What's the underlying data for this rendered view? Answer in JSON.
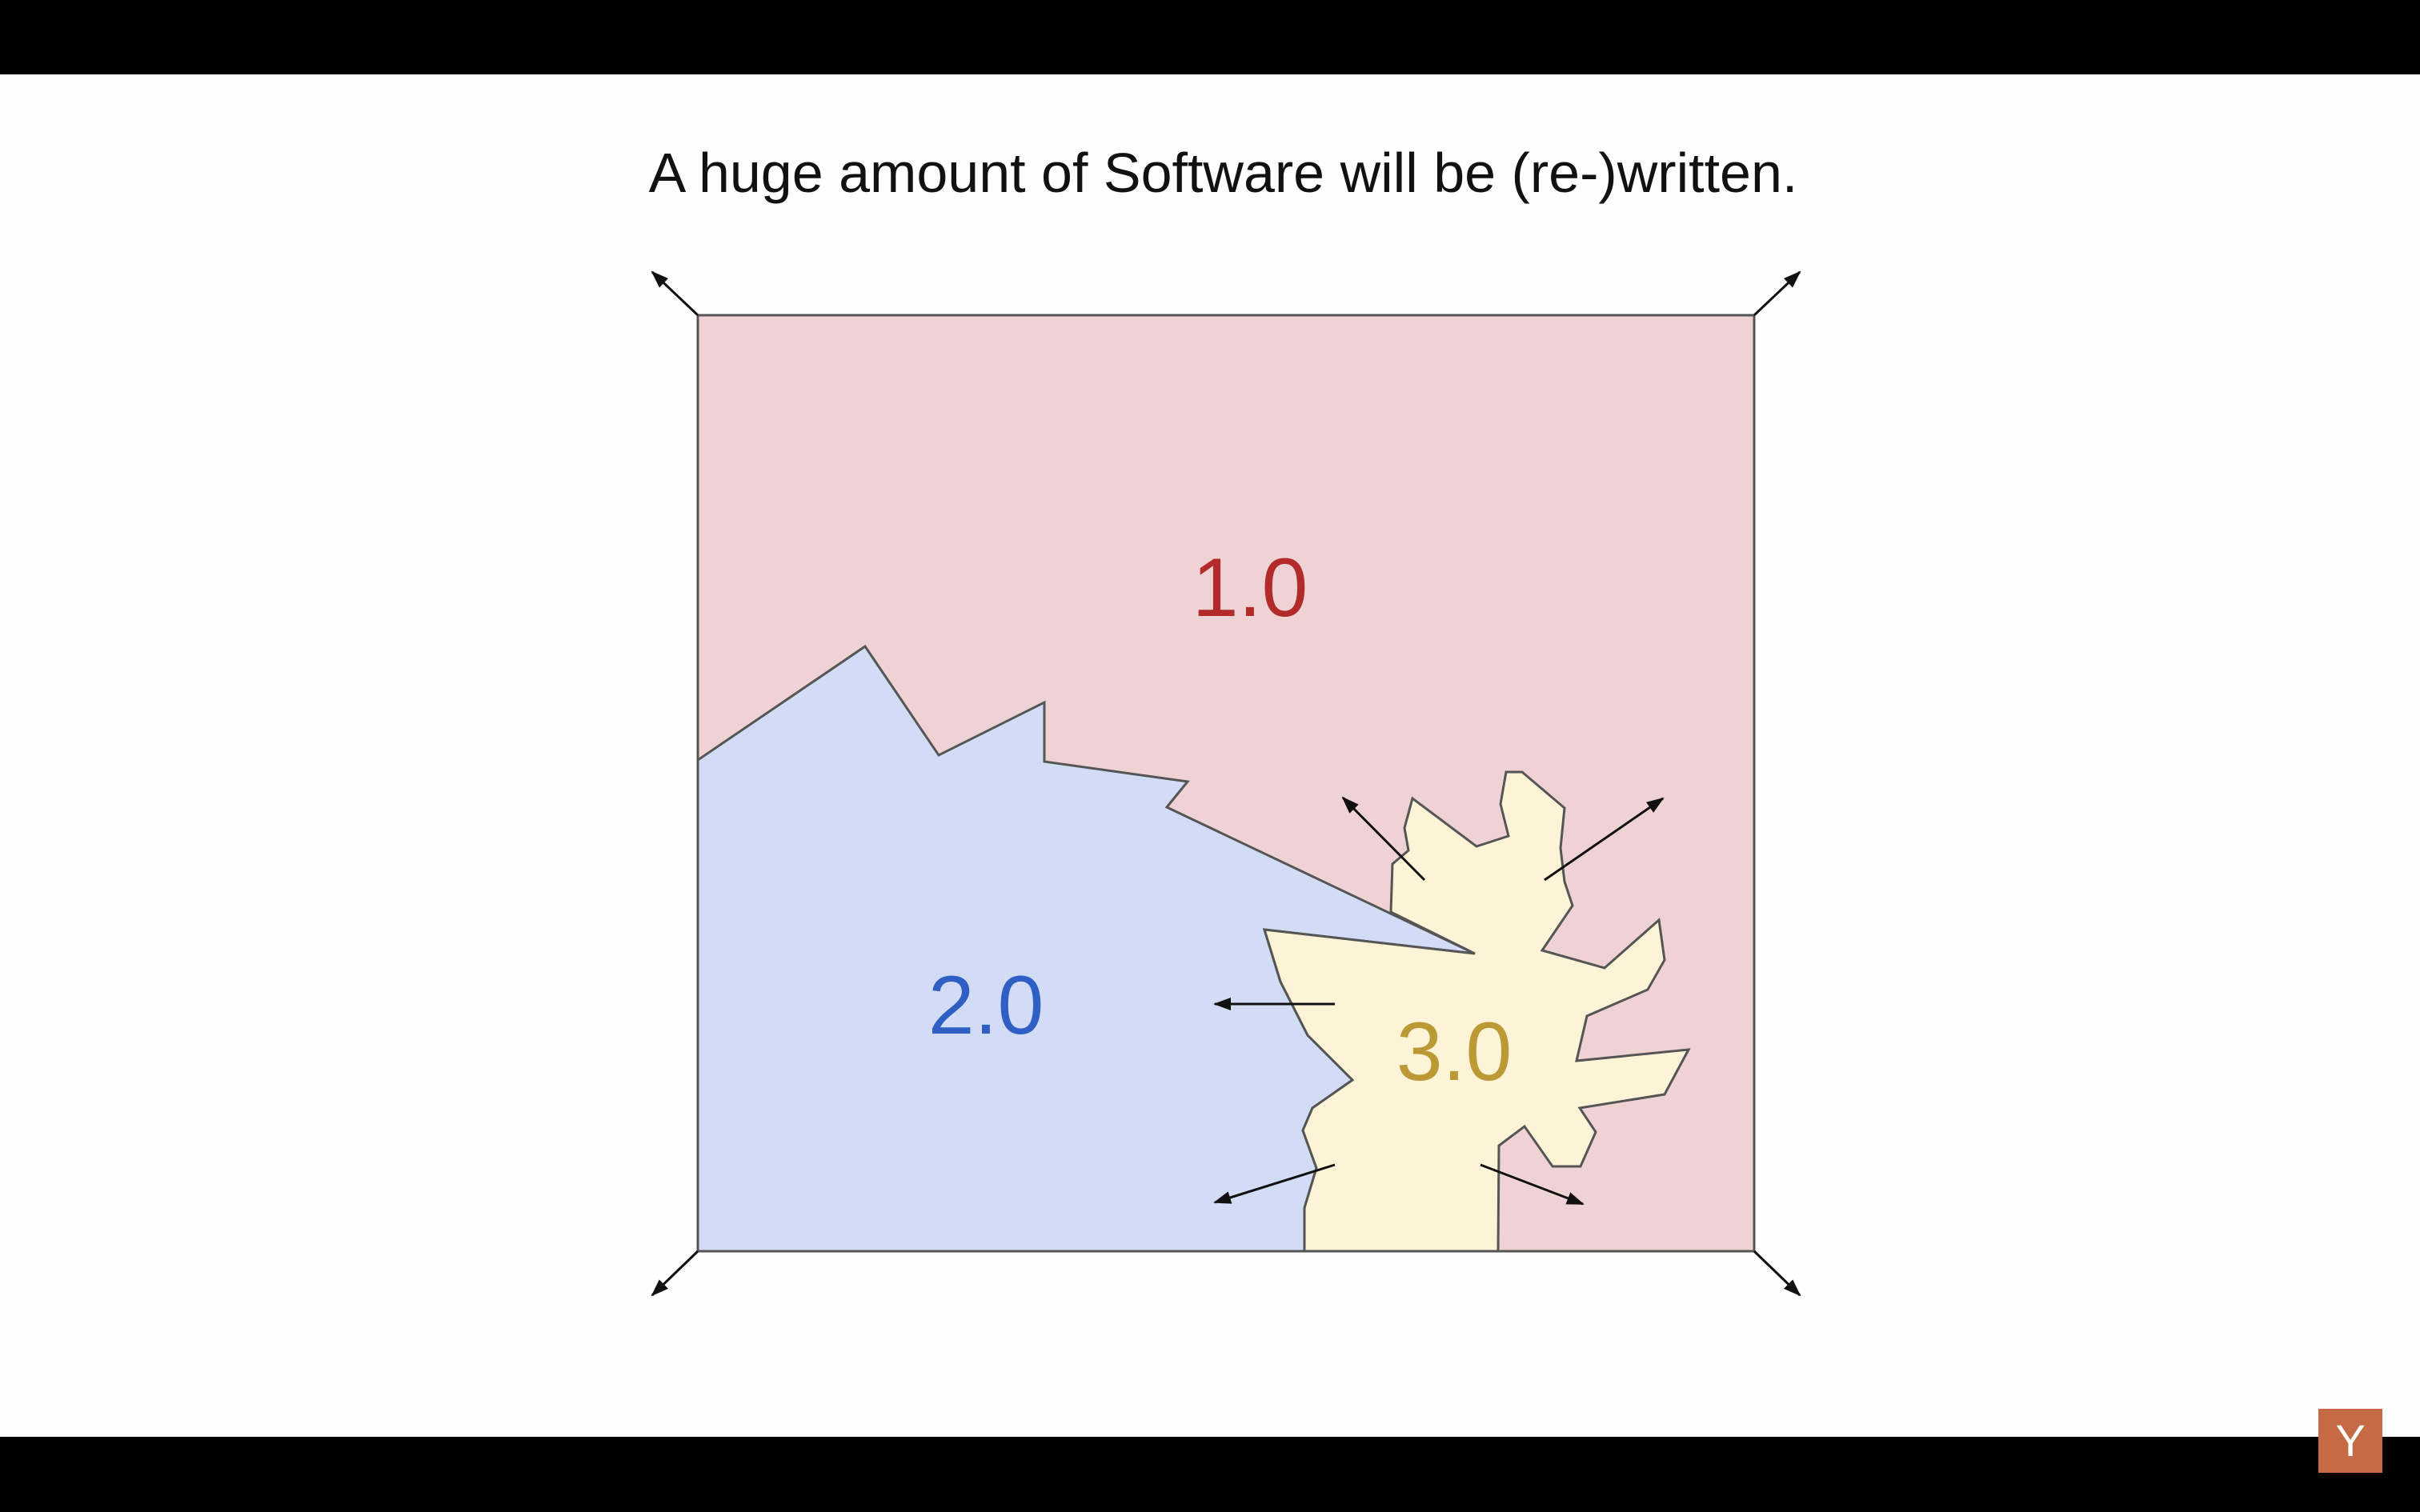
{
  "slide": {
    "title": "A huge amount of Software will be (re-)written."
  },
  "regions": [
    {
      "label": "1.0",
      "color": "#b22a2a",
      "fill": "#efd3d4"
    },
    {
      "label": "2.0",
      "color": "#2f5fc4",
      "fill": "#d2dcf5"
    },
    {
      "label": "3.0",
      "color": "#bb9a35",
      "fill": "#fdf4d8"
    }
  ],
  "arrow_color": "#111111",
  "border_color": "#555555",
  "watermark": {
    "logo": "Y",
    "icon": "ycombinator-logo-icon",
    "color": "#c46a45"
  }
}
